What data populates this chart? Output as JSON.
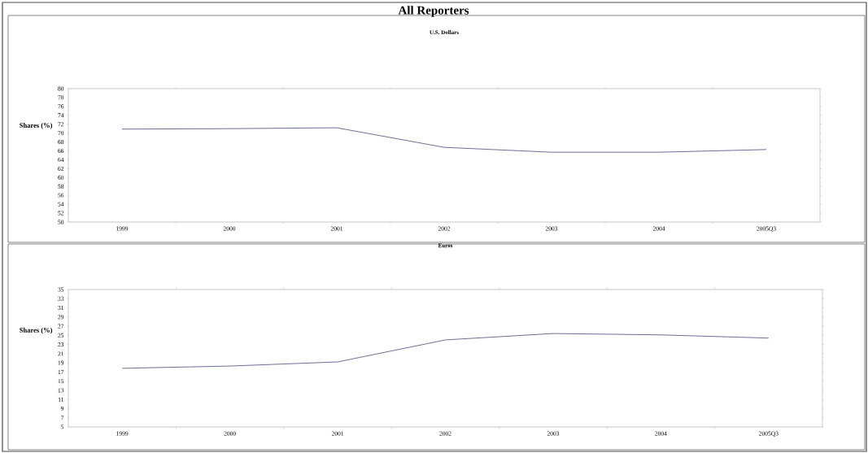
{
  "chart_data": [
    {
      "type": "line",
      "title": "All Reporters",
      "subtitle": "U.S. Dollars",
      "ylabel": "Shares (%)",
      "categories": [
        "1999",
        "2000",
        "2001",
        "2002",
        "2003",
        "2004",
        "2005Q3"
      ],
      "values": [
        70.9,
        71.0,
        71.2,
        66.8,
        65.7,
        65.7,
        66.3
      ],
      "color": "#4a4a7a",
      "ylim": [
        50,
        80
      ],
      "yticks": [
        50,
        52,
        54,
        56,
        58,
        60,
        62,
        64,
        66,
        68,
        70,
        72,
        74,
        76,
        78,
        80
      ],
      "grid": false,
      "marker": "none"
    },
    {
      "type": "line",
      "subtitle": "Euros",
      "ylabel": "Shares (%)",
      "categories": [
        "1999",
        "2000",
        "2001",
        "2002",
        "2003",
        "2004",
        "2005Q3"
      ],
      "values": [
        17.8,
        18.3,
        19.2,
        24.0,
        25.4,
        25.1,
        24.4
      ],
      "color": "#4a4a7a",
      "ylim": [
        5,
        35
      ],
      "yticks": [
        5,
        7,
        9,
        11,
        13,
        15,
        17,
        19,
        21,
        23,
        25,
        27,
        29,
        31,
        33,
        35
      ],
      "grid": false,
      "marker": "none"
    }
  ]
}
